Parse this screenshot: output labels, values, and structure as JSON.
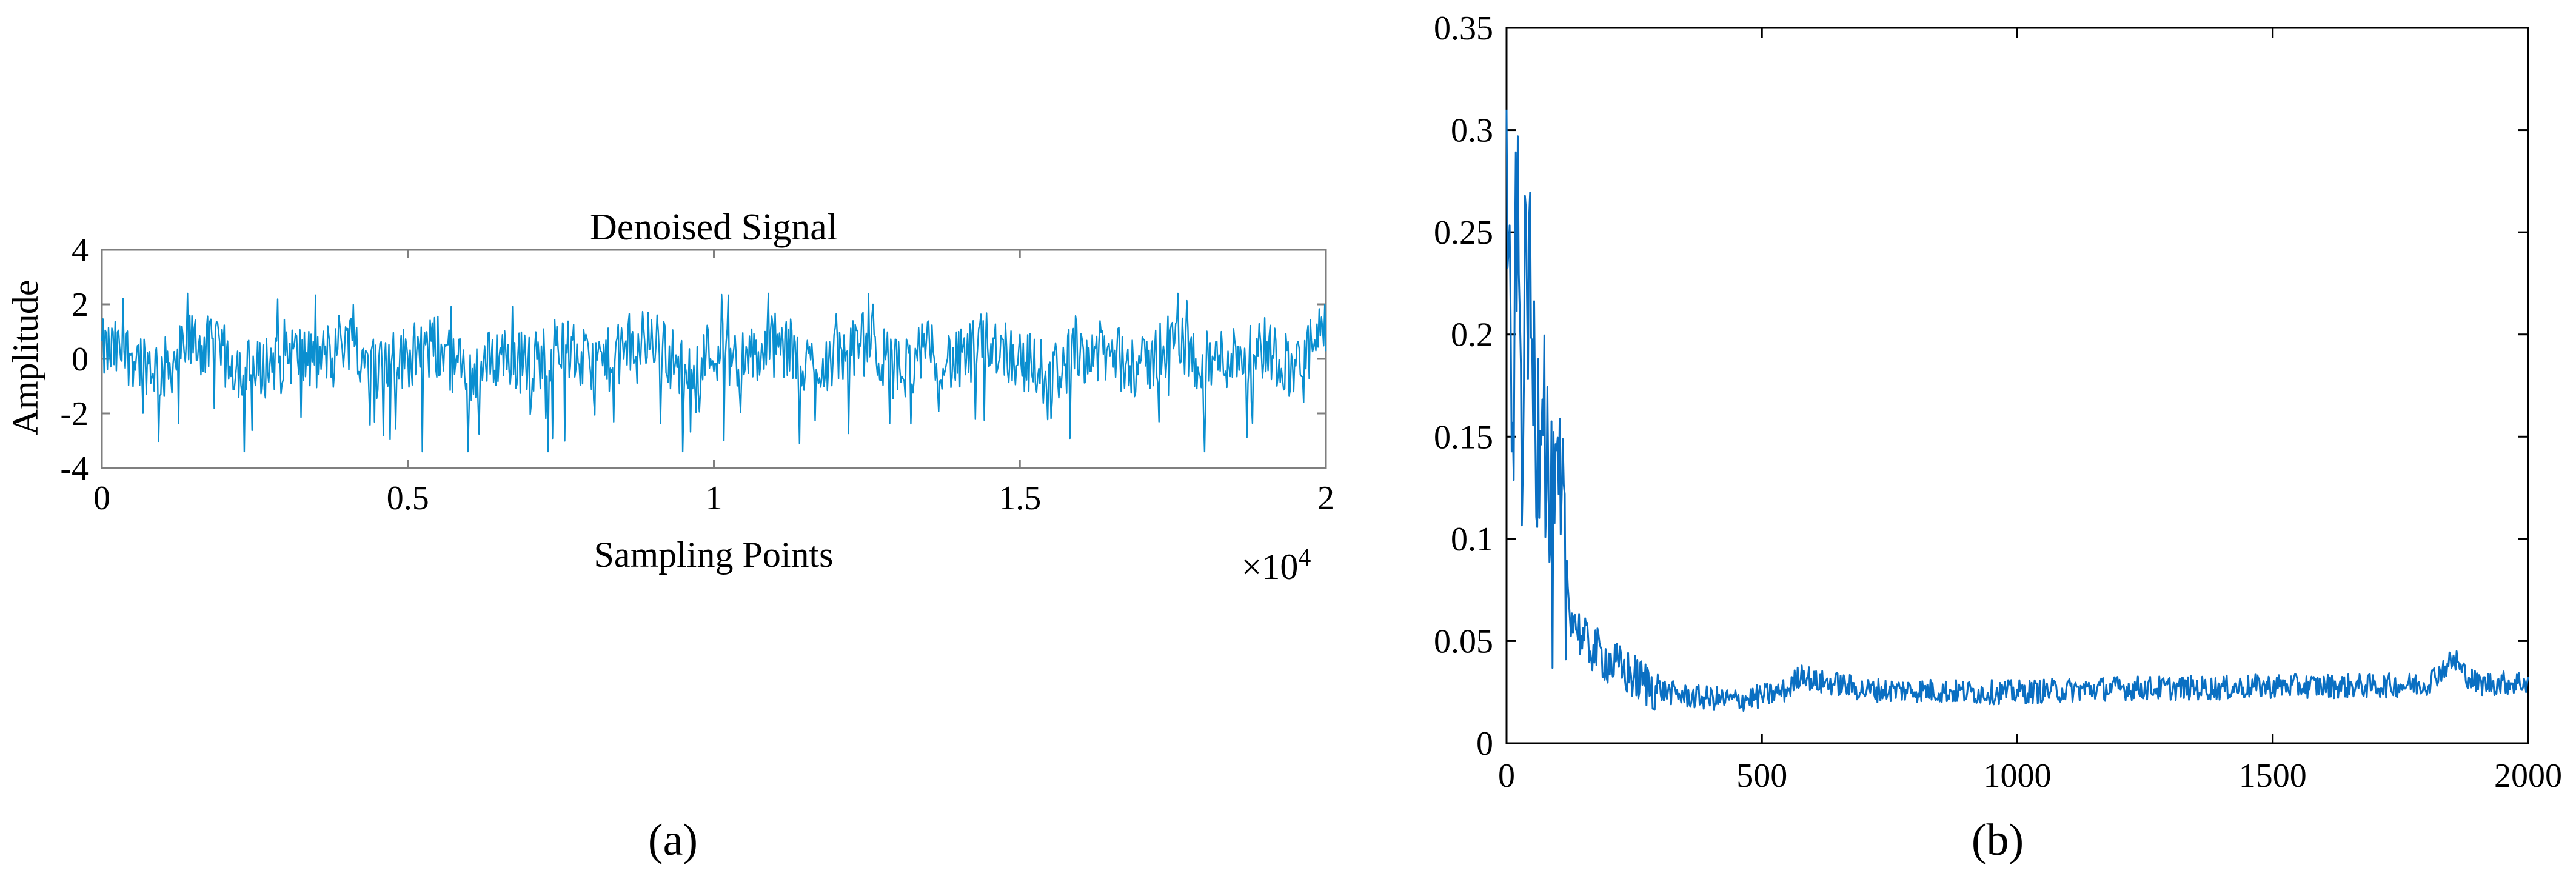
{
  "colors": {
    "signal": "#0a8fd0",
    "curve": "#0a6fc2",
    "axis": "#808080",
    "text": "#000000"
  },
  "chart_data": [
    {
      "type": "line",
      "panel_label": "(a)",
      "title": "Denoised Signal",
      "xlabel": "Sampling Points",
      "ylabel": "Amplitude",
      "x_exponent": "×10",
      "x_exponent_power": "4",
      "xlim": [
        0,
        20000
      ],
      "ylim": [
        -4,
        4
      ],
      "xticks": [
        0,
        5000,
        10000,
        15000,
        20000
      ],
      "xtick_labels": [
        "0",
        "0.5",
        "1",
        "1.5",
        "2"
      ],
      "yticks": [
        -4,
        -2,
        0,
        2,
        4
      ],
      "ytick_labels": [
        "-4",
        "-2",
        "0",
        "2",
        "4"
      ],
      "grid": false,
      "series": [
        {
          "x": [
            0,
            500,
            1000,
            1500,
            2000,
            2500,
            3000,
            3500,
            4000,
            4500,
            5000,
            5500,
            6000,
            6500,
            7000,
            7500,
            8000,
            8500,
            9000,
            9500,
            10000,
            10500,
            11000,
            11500,
            12000,
            12500,
            13000,
            13500,
            14000,
            14500,
            15000,
            15500,
            16000,
            16500,
            17000,
            17500,
            18000,
            18500,
            19000,
            19500,
            20000
          ],
          "values": [
            0.5,
            0.3,
            -0.8,
            1.2,
            0.1,
            -1.0,
            0.6,
            -0.3,
            1.5,
            -0.7,
            0.2,
            0.8,
            -1.2,
            0.4,
            -0.4,
            1.0,
            -0.6,
            0.3,
            1.6,
            -0.9,
            0.7,
            -0.2,
            0.9,
            -0.5,
            0.1,
            1.1,
            -0.8,
            0.5,
            -0.3,
            1.3,
            0.0,
            -1.1,
            0.6,
            0.2,
            -0.7,
            1.4,
            -0.4,
            0.3,
            0.8,
            -0.6,
            1.8
          ]
        }
      ]
    },
    {
      "type": "line",
      "panel_label": "(b)",
      "title": "",
      "xlabel": "",
      "ylabel": "",
      "xlim": [
        0,
        2000
      ],
      "ylim": [
        0,
        0.35
      ],
      "xticks": [
        0,
        500,
        1000,
        1500,
        2000
      ],
      "xtick_labels": [
        "0",
        "500",
        "1000",
        "1500",
        "2000"
      ],
      "yticks": [
        0,
        0.05,
        0.1,
        0.15,
        0.2,
        0.25,
        0.3,
        0.35
      ],
      "ytick_labels": [
        "0",
        "0.05",
        "0.1",
        "0.15",
        "0.2",
        "0.25",
        "0.3",
        "0.35"
      ],
      "grid": false,
      "series": [
        {
          "x": [
            0,
            10,
            20,
            30,
            40,
            50,
            60,
            70,
            80,
            90,
            100,
            125,
            150,
            200,
            250,
            300,
            350,
            400,
            450,
            500,
            550,
            580,
            600,
            650,
            700,
            800,
            900,
            1000,
            1100,
            1200,
            1300,
            1400,
            1500,
            1600,
            1700,
            1800,
            1850,
            1900,
            2000
          ],
          "values": [
            0.31,
            0.12,
            0.26,
            0.16,
            0.24,
            0.19,
            0.15,
            0.2,
            0.13,
            0.09,
            0.11,
            0.065,
            0.05,
            0.04,
            0.032,
            0.026,
            0.023,
            0.022,
            0.021,
            0.023,
            0.026,
            0.035,
            0.03,
            0.029,
            0.026,
            0.026,
            0.025,
            0.025,
            0.026,
            0.027,
            0.027,
            0.027,
            0.028,
            0.028,
            0.028,
            0.029,
            0.04,
            0.029,
            0.03
          ]
        }
      ]
    }
  ]
}
